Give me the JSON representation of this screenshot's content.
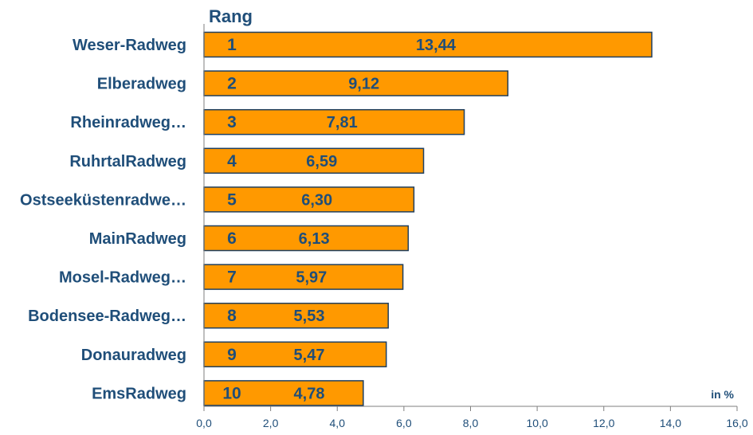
{
  "colors": {
    "bar_fill": "#FF9900",
    "bar_stroke": "#1f3f5f",
    "text": "#1f4e79",
    "axis": "#7f7f7f"
  },
  "chart_data": {
    "type": "bar",
    "orientation": "horizontal",
    "rank_header": "Rang",
    "unit_label": "in %",
    "categories": [
      "Weser-Radweg",
      "Elberadweg",
      "Rheinradweg…",
      "RuhrtalRadweg",
      "Ostseeküstenradwe…",
      "MainRadweg",
      "Mosel-Radweg…",
      "Bodensee-Radweg…",
      "Donauradweg",
      "EmsRadweg"
    ],
    "ranks": [
      "1",
      "2",
      "3",
      "4",
      "5",
      "6",
      "7",
      "8",
      "9",
      "10"
    ],
    "values": [
      13.44,
      9.12,
      7.81,
      6.59,
      6.3,
      6.13,
      5.97,
      5.53,
      5.47,
      4.78
    ],
    "value_labels": [
      "13,44",
      "9,12",
      "7,81",
      "6,59",
      "6,30",
      "6,13",
      "5,97",
      "5,53",
      "5,47",
      "4,78"
    ],
    "xlim": [
      0,
      16
    ],
    "x_ticks": [
      "0,0",
      "2,0",
      "4,0",
      "6,0",
      "8,0",
      "10,0",
      "12,0",
      "14,0",
      "16,0"
    ],
    "grid": false,
    "legend": "none"
  }
}
